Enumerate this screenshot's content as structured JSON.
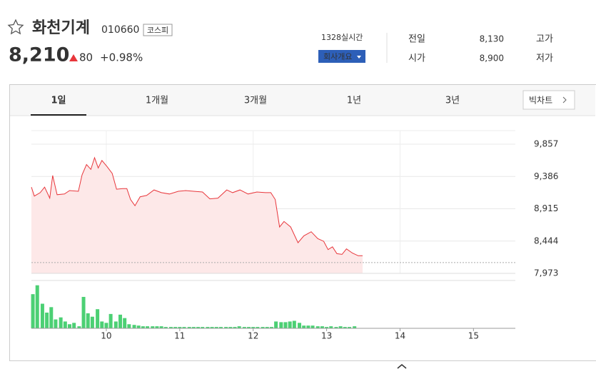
{
  "header": {
    "name": "화천기계",
    "code": "010660",
    "market": "코스피",
    "price": "8,210",
    "change": "80",
    "change_pct": "+0.98%",
    "time": "1328실시간",
    "company_button": "회사개요",
    "prev_close_label": "전일",
    "prev_close": "8,130",
    "open_label": "시가",
    "open": "8,900",
    "high_label": "고가",
    "low_label": "저가"
  },
  "tabs": [
    "1일",
    "1개월",
    "3개월",
    "1년",
    "3년"
  ],
  "chart_button": "빅차트",
  "chart_data": [
    {
      "type": "line",
      "color": "#e8363b",
      "fill": "#fde8e8",
      "baseline": 8130,
      "x": [
        8.98,
        9.02,
        9.1,
        9.16,
        9.23,
        9.27,
        9.33,
        9.43,
        9.5,
        9.62,
        9.67,
        9.73,
        9.79,
        9.84,
        9.89,
        9.94,
        10.01,
        10.08,
        10.14,
        10.22,
        10.28,
        10.33,
        10.39,
        10.46,
        10.55,
        10.65,
        10.75,
        10.86,
        10.98,
        11.08,
        11.19,
        11.31,
        11.41,
        11.52,
        11.64,
        11.72,
        11.82,
        11.93,
        12.05,
        12.17,
        12.24,
        12.3,
        12.36,
        12.42,
        12.51,
        12.61,
        12.69,
        12.79,
        12.88,
        12.96,
        13.02,
        13.08,
        13.14,
        13.21,
        13.27,
        13.35,
        13.43,
        13.49
      ],
      "values": [
        9230,
        9100,
        9150,
        9230,
        9070,
        9400,
        9120,
        9130,
        9180,
        9170,
        9410,
        9560,
        9490,
        9660,
        9510,
        9620,
        9530,
        9430,
        9200,
        9210,
        9210,
        9050,
        8960,
        9090,
        9110,
        9190,
        9150,
        9130,
        9170,
        9180,
        9170,
        9160,
        9060,
        9070,
        9190,
        9150,
        9190,
        9130,
        9160,
        9150,
        9150,
        9050,
        8650,
        8730,
        8650,
        8420,
        8520,
        8580,
        8480,
        8440,
        8320,
        8360,
        8260,
        8250,
        8330,
        8270,
        8230,
        8230
      ],
      "xlim": [
        8.98,
        15.57
      ],
      "ylim": [
        7973,
        9857
      ],
      "yticks": [
        {
          "value": 9857,
          "label": "9,857"
        },
        {
          "value": 9386,
          "label": "9,386"
        },
        {
          "value": 8915,
          "label": "8,915"
        },
        {
          "value": 8444,
          "label": "8,444"
        },
        {
          "value": 7973,
          "label": "7,973"
        }
      ]
    },
    {
      "type": "bar",
      "color": "#4cd074",
      "x": [
        9,
        9.06,
        9.13,
        9.19,
        9.25,
        9.31,
        9.38,
        9.44,
        9.5,
        9.56,
        9.63,
        9.69,
        9.75,
        9.81,
        9.88,
        9.94,
        10,
        10.06,
        10.13,
        10.19,
        10.25,
        10.31,
        10.38,
        10.44,
        10.5,
        10.56,
        10.63,
        10.69,
        10.75,
        10.81,
        10.88,
        10.94,
        11,
        11.06,
        11.13,
        11.19,
        11.25,
        11.31,
        11.38,
        11.44,
        11.5,
        11.56,
        11.63,
        11.69,
        11.75,
        11.81,
        11.88,
        11.94,
        12,
        12.06,
        12.13,
        12.19,
        12.25,
        12.31,
        12.38,
        12.44,
        12.5,
        12.56,
        12.63,
        12.69,
        12.75,
        12.81,
        12.88,
        12.94,
        13,
        13.06,
        13.13,
        13.19,
        13.25,
        13.31,
        13.38
      ],
      "values": [
        50,
        63,
        36,
        23,
        31,
        13,
        16,
        10,
        6,
        8,
        3,
        46,
        22,
        17,
        28,
        10,
        8,
        21,
        10,
        20,
        15,
        6,
        5,
        4,
        3,
        3,
        3,
        3,
        3,
        2,
        2,
        2,
        2,
        2,
        2,
        2,
        2,
        2,
        2,
        2,
        2,
        2,
        2,
        2,
        2,
        3,
        2,
        2,
        2,
        2,
        2,
        2,
        2,
        10,
        9,
        9,
        10,
        11,
        8,
        4,
        4,
        4,
        3,
        3,
        2,
        3,
        2,
        3,
        2,
        2,
        3
      ],
      "xlim": [
        8.98,
        15.57
      ],
      "ylim": [
        0,
        70
      ],
      "xticks": [
        10,
        11,
        12,
        13,
        14,
        15
      ]
    }
  ]
}
